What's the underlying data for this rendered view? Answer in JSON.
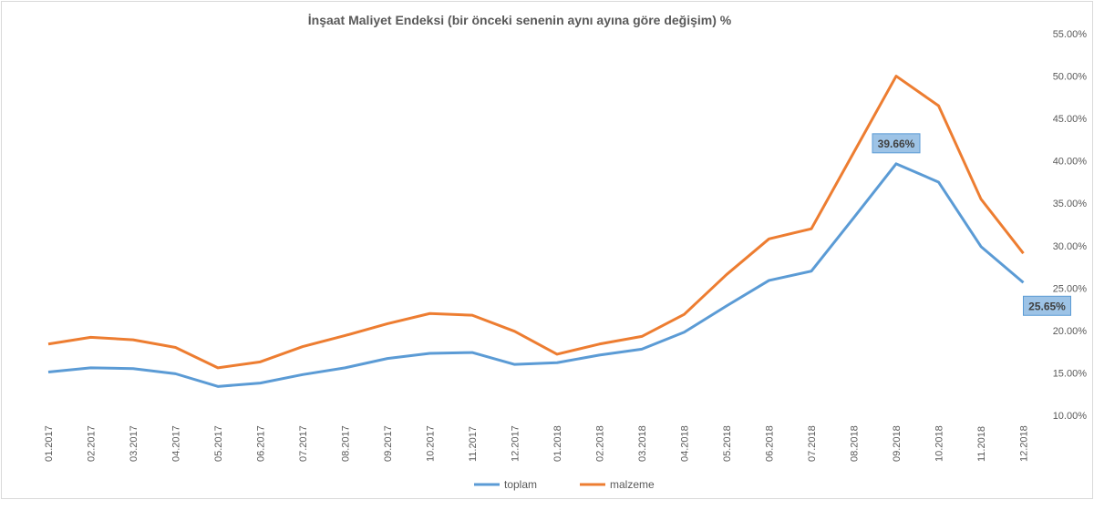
{
  "chart_data": {
    "type": "line",
    "title": "İnşaat Maliyet Endeksi (bir önceki senenin aynı ayına göre değişim) %",
    "xlabel": "",
    "ylabel": "",
    "ylim": [
      10,
      55
    ],
    "yticks": [
      "10.00%",
      "15.00%",
      "20.00%",
      "25.00%",
      "30.00%",
      "35.00%",
      "40.00%",
      "45.00%",
      "50.00%",
      "55.00%"
    ],
    "y_axis_position": "right",
    "grid": false,
    "legend_position": "bottom",
    "categories": [
      "01.2017",
      "02.2017",
      "03.2017",
      "04.2017",
      "05.2017",
      "06.2017",
      "07.2017",
      "08.2017",
      "09.2017",
      "10.2017",
      "11.2017",
      "12.2017",
      "01.2018",
      "02.2018",
      "03.2018",
      "04.2018",
      "05.2018",
      "06.2018",
      "07.2018",
      "08.2018",
      "09.2018",
      "10.2018",
      "11.2018",
      "12.2018"
    ],
    "series": [
      {
        "name": "toplam",
        "color": "#5b9bd5",
        "values": [
          15.1,
          15.6,
          15.5,
          14.9,
          13.4,
          13.8,
          14.8,
          15.6,
          16.7,
          17.3,
          17.4,
          16.0,
          16.2,
          17.1,
          17.8,
          19.8,
          22.9,
          25.9,
          27.0,
          33.3,
          39.66,
          37.5,
          29.9,
          25.65
        ]
      },
      {
        "name": "malzeme",
        "color": "#ed7d31",
        "values": [
          18.4,
          19.2,
          18.9,
          18.0,
          15.6,
          16.3,
          18.1,
          19.4,
          20.8,
          22.0,
          21.8,
          19.9,
          17.2,
          18.4,
          19.3,
          21.9,
          26.6,
          30.8,
          32.0,
          41.0,
          50.0,
          46.5,
          35.5,
          29.1
        ]
      }
    ],
    "data_labels": [
      {
        "series": "toplam",
        "category": "09.2018",
        "text": "39.66%"
      },
      {
        "series": "toplam",
        "category": "12.2018",
        "text": "25.65%"
      }
    ]
  }
}
